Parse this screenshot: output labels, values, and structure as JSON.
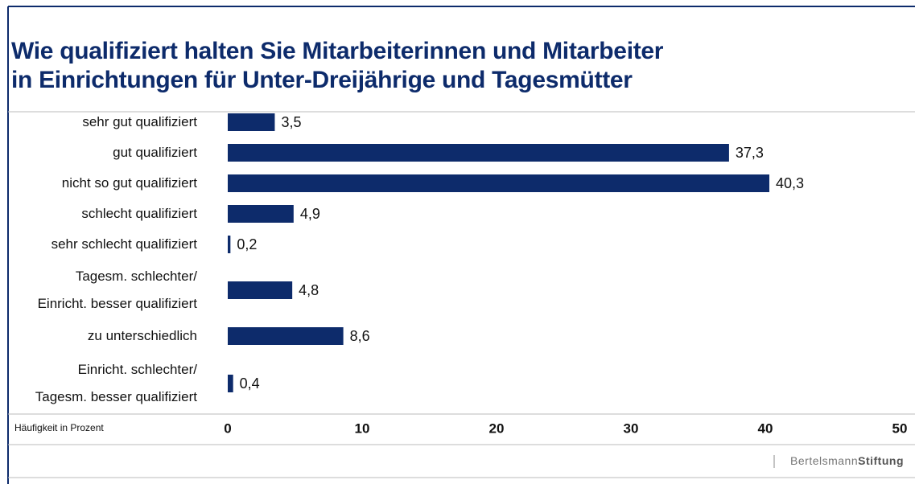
{
  "chart_data": {
    "type": "hbar",
    "title": "Wie qualifiziert halten Sie Mitarbeiterinnen und Mitarbeiter\nin Einrichtungen für Unter-Dreijährige und Tagesmütter",
    "categories": [
      "sehr gut qualifiziert",
      "gut qualifiziert",
      "nicht so gut qualifiziert",
      "schlecht qualifiziert",
      "sehr schlecht qualifiziert",
      "Tagesm. schlechter/\nEinricht. besser qualifiziert",
      "zu unterschiedlich",
      "Einricht. schlechter/\nTagesm. besser qualifiziert"
    ],
    "values": [
      3.5,
      37.3,
      40.3,
      4.9,
      0.2,
      4.8,
      8.6,
      0.4
    ],
    "value_labels": [
      "3,5",
      "37,3",
      "40,3",
      "4,9",
      "0,2",
      "4,8",
      "8,6",
      "0,4"
    ],
    "color": "#0d2b6b",
    "xlabel": "Häufigkeit in Prozent",
    "xlim": [
      0,
      50
    ],
    "xticks": [
      0,
      10,
      20,
      30,
      40,
      50
    ],
    "source": [
      "Bertelsmann",
      "Stiftung"
    ]
  }
}
